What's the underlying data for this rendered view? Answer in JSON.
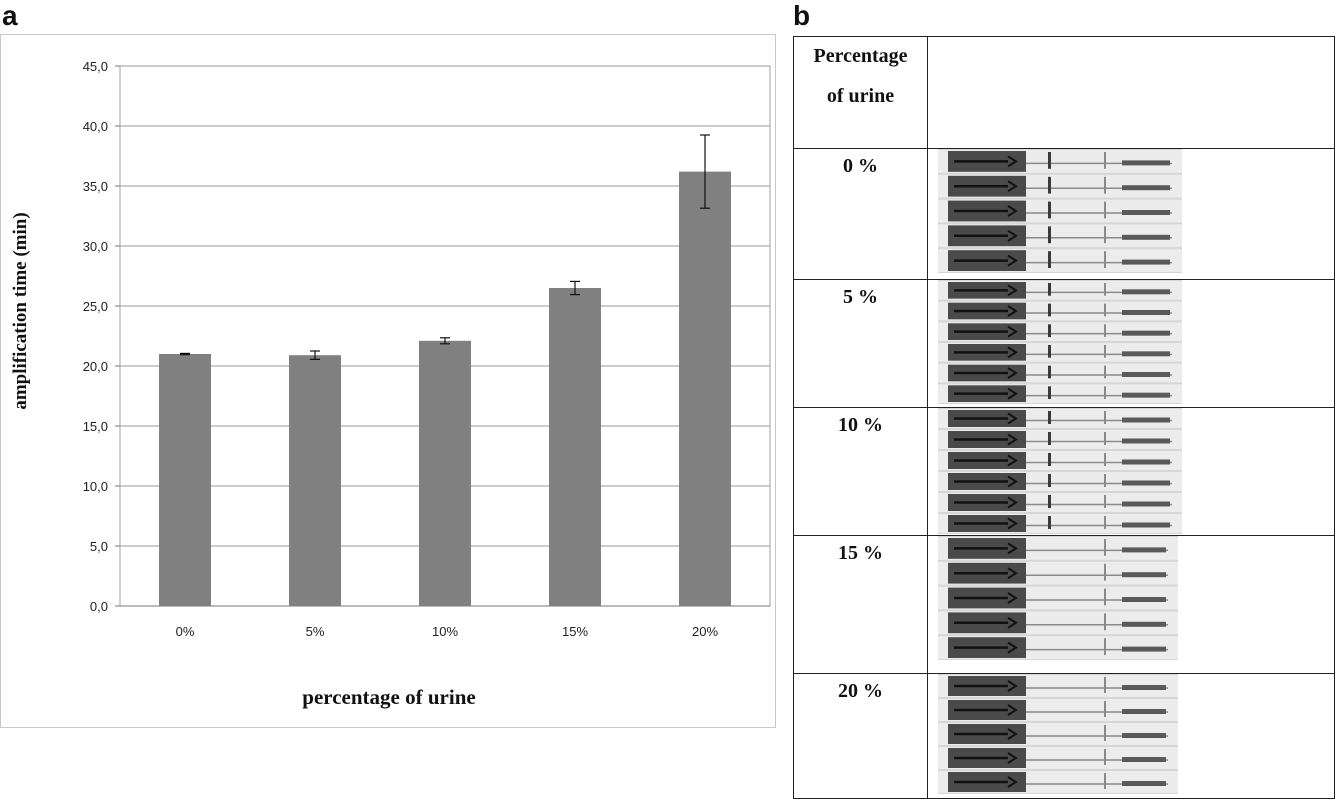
{
  "panels": {
    "a": "a",
    "b": "b"
  },
  "chart_data": {
    "type": "bar",
    "categories": [
      "0%",
      "5%",
      "10%",
      "15%",
      "20%"
    ],
    "values": [
      21.0,
      20.9,
      22.1,
      26.5,
      36.2
    ],
    "error": [
      0.05,
      0.35,
      0.25,
      0.55,
      3.05
    ],
    "title": "",
    "xlabel": "percentage of urine",
    "ylabel": "amplification time (min)",
    "ylim": [
      0,
      45
    ],
    "yticks": [
      "0,0",
      "5,0",
      "10,0",
      "15,0",
      "20,0",
      "25,0",
      "30,0",
      "35,0",
      "40,0",
      "45,0"
    ],
    "grid": true,
    "bar_color": "#808080"
  },
  "table": {
    "header": "Percentage of urine",
    "header_lines": [
      "Percentage",
      "of urine"
    ],
    "rows": [
      {
        "label": "0 %",
        "strips": 5
      },
      {
        "label": "5 %",
        "strips": 6
      },
      {
        "label": "10 %",
        "strips": 6
      },
      {
        "label": "15 %",
        "strips": 5
      },
      {
        "label": "20 %",
        "strips": 5
      }
    ]
  }
}
